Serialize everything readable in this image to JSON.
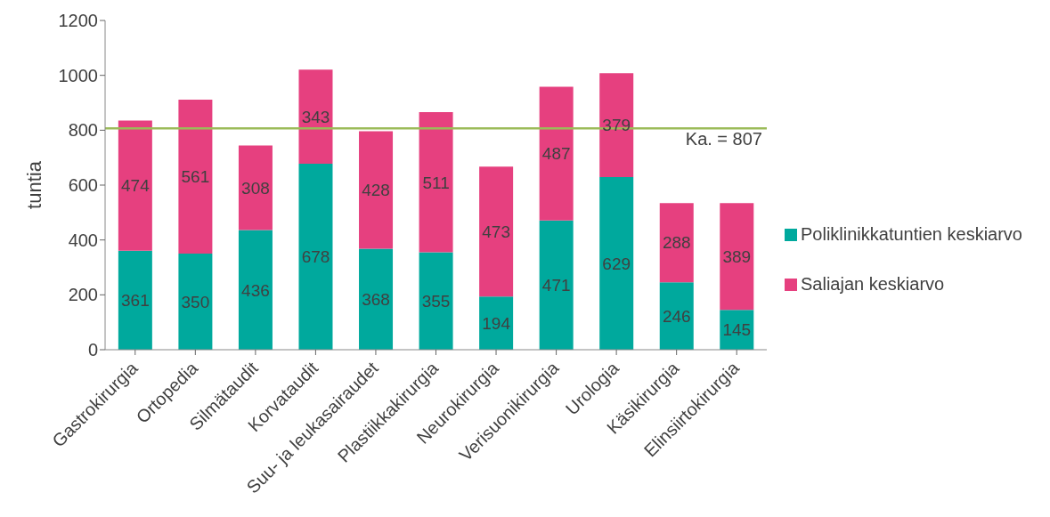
{
  "chart_data": {
    "type": "bar",
    "stacked": true,
    "ylabel": "tuntia",
    "categories": [
      "Gastrokirurgia",
      "Ortopedia",
      "Silmätaudit",
      "Korvataudit",
      "Suu- ja leukasairaudet",
      "Plastiikkakirurgia",
      "Neurokirurgia",
      "Verisuonikirurgia",
      "Urologia",
      "Käsikirurgia",
      "Elinsiirtokirurgia"
    ],
    "series": [
      {
        "name": "Poliklinikkatuntien keskiarvo",
        "color": "#00a99d",
        "values": [
          361,
          350,
          436,
          678,
          368,
          355,
          194,
          471,
          629,
          246,
          145
        ]
      },
      {
        "name": "Saliajan keskiarvo",
        "color": "#e6407f",
        "values": [
          474,
          561,
          308,
          343,
          428,
          511,
          473,
          487,
          379,
          288,
          389
        ]
      }
    ],
    "ylim": [
      0,
      1200
    ],
    "yticks": [
      0,
      200,
      400,
      600,
      800,
      1000,
      1200
    ],
    "grid": false,
    "legend": "right",
    "data_labels": true,
    "ref_lines": [
      {
        "axis": "y",
        "value": 807,
        "label": "Ka. = 807",
        "color": "#9bbb59"
      }
    ]
  }
}
